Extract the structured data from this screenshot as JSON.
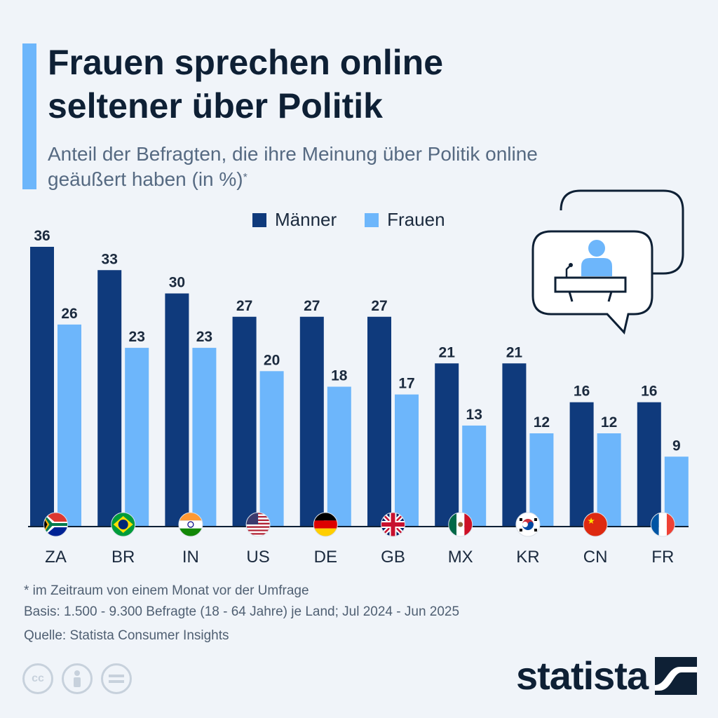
{
  "title": "Frauen sprechen online seltener über Politik",
  "subtitle": "Anteil der Befragten, die ihre Meinung über Politik online geäußert haben (in %)",
  "subtitle_mark": "*",
  "colors": {
    "maenner": "#0f3a7c",
    "frauen": "#6db6fb",
    "accent": "#6db6fb"
  },
  "chart_data": {
    "type": "bar",
    "categories": [
      "ZA",
      "BR",
      "IN",
      "US",
      "DE",
      "GB",
      "MX",
      "KR",
      "CN",
      "FR"
    ],
    "series": [
      {
        "name": "Männer",
        "values": [
          36,
          33,
          30,
          27,
          27,
          27,
          21,
          21,
          16,
          16
        ]
      },
      {
        "name": "Frauen",
        "values": [
          26,
          23,
          23,
          20,
          18,
          17,
          13,
          12,
          12,
          9
        ]
      }
    ],
    "ylim": [
      0,
      36
    ],
    "grid": false,
    "legend": "top-center",
    "flags": [
      "south-africa-flag-icon",
      "brazil-flag-icon",
      "india-flag-icon",
      "usa-flag-icon",
      "germany-flag-icon",
      "uk-flag-icon",
      "mexico-flag-icon",
      "south-korea-flag-icon",
      "china-flag-icon",
      "france-flag-icon"
    ]
  },
  "footnote": {
    "line1": "* im Zeitraum von einem Monat vor der Umfrage",
    "line2": "Basis: 1.500 - 9.300 Befragte (18 - 64 Jahre) je Land; Jul 2024 - Jun 2025",
    "source": "Quelle: Statista Consumer Insights"
  },
  "brand": "statista"
}
